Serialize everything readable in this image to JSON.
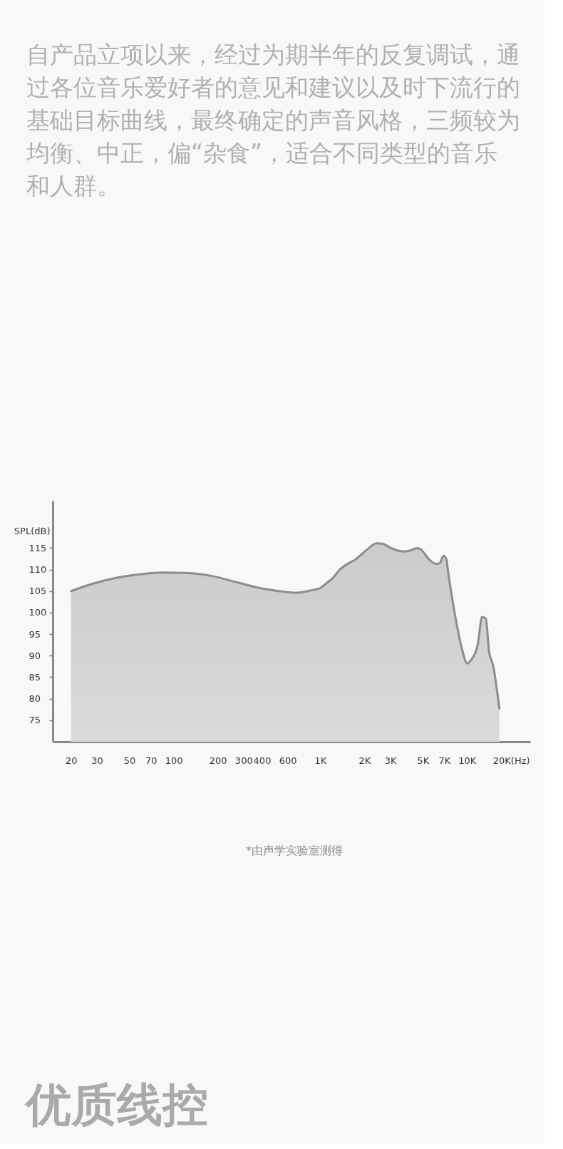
{
  "chart_data": {
    "type": "area",
    "title": "自产品立项以来，经过为期半年的反复调试，通过各位音乐爱好者的意见和建议以及时下流行的基础目标曲线，最终确定的声音风格，三频较为均衡、中正，偏“杂食”，适合不同类型的音乐和人群。",
    "ylabel": "SPL(dB)",
    "annotations": [
      "*由声学实验室测得",
      "优质线控"
    ],
    "log": "x",
    "xlim": [
      15,
      27000
    ],
    "xticks": [
      20,
      30,
      50,
      70,
      100,
      200,
      300,
      400,
      600,
      {
        "value": 1000,
        "label": "1K"
      },
      {
        "value": 2000,
        "label": "2K"
      },
      {
        "value": 3000,
        "label": "3K"
      },
      {
        "value": 5000,
        "label": "5K"
      },
      {
        "value": 7000,
        "label": "7K"
      },
      {
        "value": 10000,
        "label": "10K"
      },
      {
        "value": 20000,
        "label": "20K(Hz)"
      }
    ],
    "ylim": [
      70,
      126
    ],
    "yticks": [
      75,
      80,
      85,
      90,
      95,
      100,
      105,
      110,
      115
    ],
    "x": [
      20,
      28,
      41,
      59,
      86,
      126,
      183,
      266,
      386,
      500,
      680,
      880,
      1000,
      1100,
      1230,
      1350,
      1550,
      1730,
      2080,
      2420,
      2660,
      3030,
      3650,
      4090,
      4570,
      4840,
      5510,
      6170,
      6530,
      6910,
      7230,
      7450,
      8030,
      8650,
      9320,
      10040,
      10620,
      11880,
      12670,
      13450,
      14170,
      15060,
      16650
    ],
    "series": [
      {
        "color": "#8c8c8c",
        "values": [
          105.0,
          106.7,
          108.1,
          108.9,
          109.3,
          109.2,
          108.5,
          107.1,
          105.7,
          105.1,
          104.6,
          105.2,
          105.7,
          106.8,
          108.2,
          109.9,
          111.4,
          112.3,
          114.6,
          116.1,
          116.0,
          115.0,
          114.2,
          114.4,
          115.0,
          114.7,
          112.4,
          111.3,
          111.5,
          113.2,
          112.5,
          109.3,
          102.2,
          96.1,
          91.1,
          88.2,
          88.9,
          92.8,
          99.0,
          98.6,
          90.8,
          87.8,
          77.7
        ]
      }
    ]
  }
}
